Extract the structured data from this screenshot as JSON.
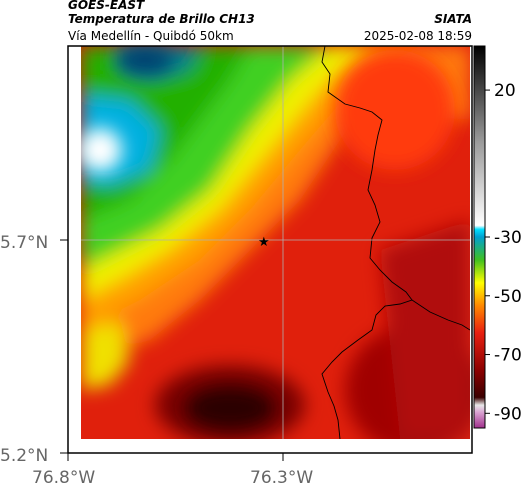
{
  "header": {
    "product": "GOES-EAST",
    "title": "Temperatura de Brillo CH13",
    "agency": "SIATA",
    "subtitle": "Vía Medellín - Quibdó 50km",
    "timestamp": "2025-02-08 18:59"
  },
  "axes": {
    "lat_labels": [
      "5.7°N",
      "5.2°N"
    ],
    "lon_labels": [
      "76.8°W",
      "76.3°W"
    ]
  },
  "colorbar": {
    "ticks": [
      "20",
      "-30",
      "-50",
      "-70",
      "-90"
    ],
    "tick_values": [
      20,
      -30,
      -50,
      -70,
      -90
    ],
    "range": [
      -95,
      35
    ]
  },
  "marker": {
    "symbol": "★",
    "lat": 5.7,
    "lon": -76.33
  },
  "colors": {
    "frame": "#000000",
    "grid": "#b0b0b0",
    "border_line": "#000000",
    "axis_label": "#666666"
  }
}
